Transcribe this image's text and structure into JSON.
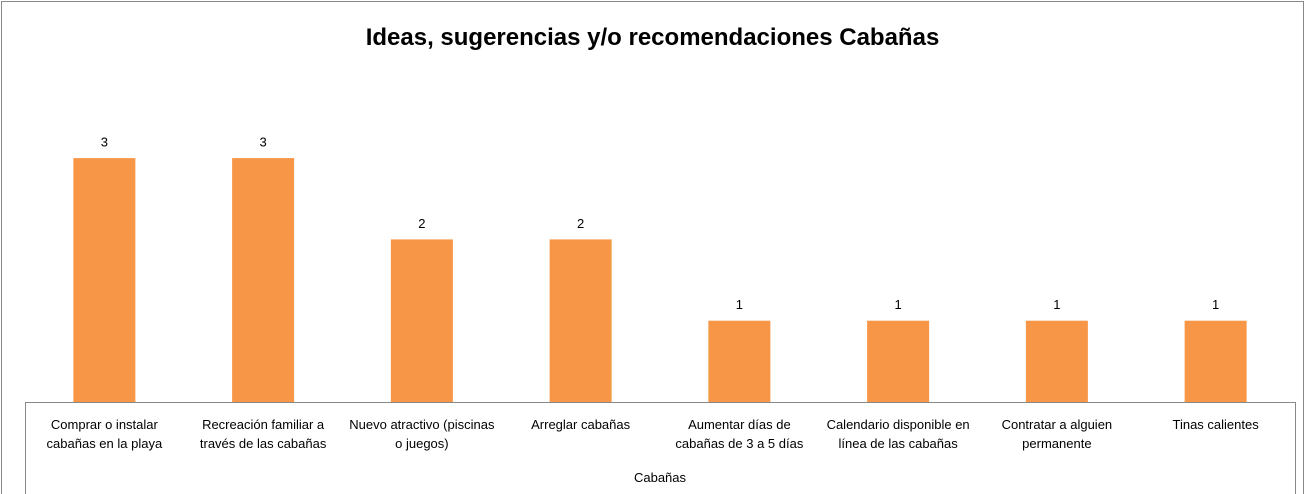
{
  "chart_data": {
    "type": "bar",
    "title": "Ideas, sugerencias y/o recomendaciones Cabañas",
    "x_label": "Cabañas",
    "categories": [
      "Comprar o instalar cabañas en la playa",
      "Recreación familiar a través de las cabañas",
      "Nuevo atractivo (piscinas o juegos)",
      "Arreglar cabañas",
      "Aumentar días de cabañas de 3 a 5 días",
      "Calendario disponible en línea de las cabañas",
      "Contratar a alguien permanente",
      "Tinas calientes"
    ],
    "values": [
      3,
      3,
      2,
      2,
      1,
      1,
      1,
      1
    ],
    "color": "#f79646",
    "ylim": [
      0,
      3.5
    ]
  }
}
